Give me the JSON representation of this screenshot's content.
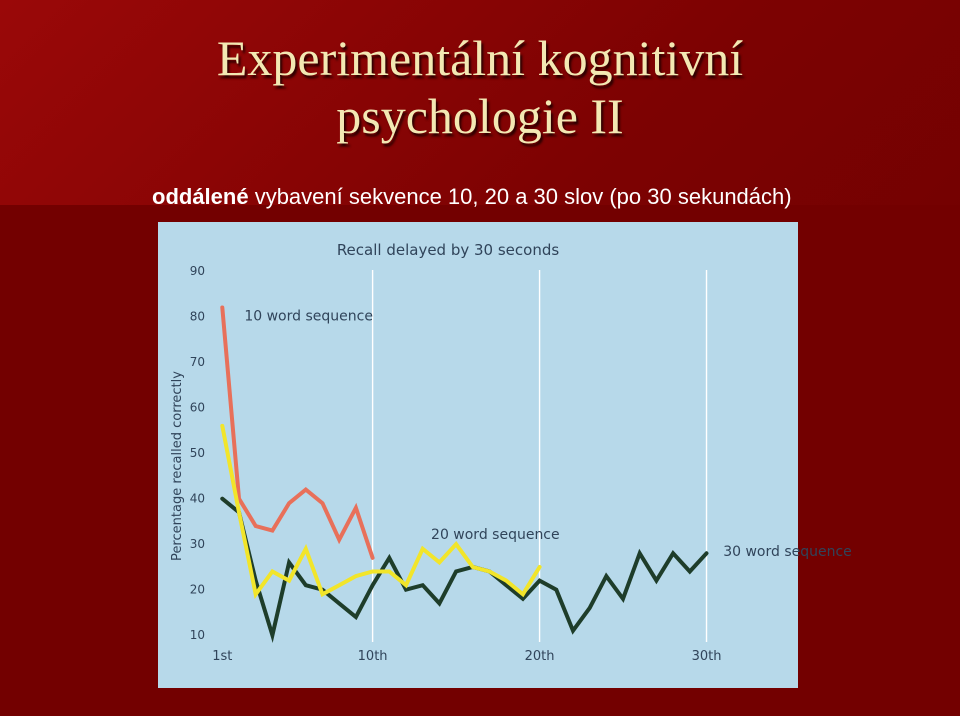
{
  "slide": {
    "title_line1": "Experimentální kognitivní",
    "title_line2": "psychologie II",
    "subtitle_bold": "oddálené",
    "subtitle_rest": " vybavení sekvence 10, 20 a 30 slov (po 30 sekundách)"
  },
  "chart_data": {
    "type": "line",
    "title": "Recall delayed by 30 seconds",
    "ylabel": "Percentage recalled correctly",
    "xlabel": "",
    "ylim": [
      5,
      92
    ],
    "xlim": [
      0.5,
      35
    ],
    "yticks": [
      10,
      20,
      30,
      40,
      50,
      60,
      70,
      80,
      90
    ],
    "xticks": [
      {
        "value": 1,
        "label": "1st"
      },
      {
        "value": 10,
        "label": "10th"
      },
      {
        "value": 20,
        "label": "20th"
      },
      {
        "value": 30,
        "label": "30th"
      }
    ],
    "grid": false,
    "series": [
      {
        "name": "10 word sequence",
        "color": "#e8705a",
        "x": [
          1,
          2,
          3,
          4,
          5,
          6,
          7,
          8,
          9,
          10
        ],
        "y": [
          82,
          40,
          34,
          33,
          39,
          42,
          39,
          31,
          38,
          27
        ]
      },
      {
        "name": "20 word sequence",
        "color": "#f2e52a",
        "x": [
          1,
          2,
          3,
          4,
          5,
          6,
          7,
          8,
          9,
          10,
          11,
          12,
          13,
          14,
          15,
          16,
          17,
          18,
          19,
          20
        ],
        "y": [
          56,
          37,
          19,
          24,
          22,
          29,
          19,
          21,
          23,
          24,
          24,
          21,
          29,
          26,
          30,
          25,
          24,
          22,
          19,
          25
        ]
      },
      {
        "name": "30 word sequence",
        "color": "#1e3d2a",
        "x": [
          1,
          2,
          3,
          4,
          5,
          6,
          7,
          8,
          9,
          10,
          11,
          12,
          13,
          14,
          15,
          16,
          17,
          18,
          19,
          20,
          21,
          22,
          23,
          24,
          25,
          26,
          27,
          28,
          29,
          30
        ],
        "y": [
          40,
          37,
          22,
          10,
          26,
          21,
          20,
          17,
          14,
          21,
          27,
          20,
          21,
          17,
          24,
          25,
          24,
          21,
          18,
          22,
          20,
          11,
          16,
          23,
          18,
          28,
          22,
          28,
          24,
          28
        ]
      }
    ]
  }
}
